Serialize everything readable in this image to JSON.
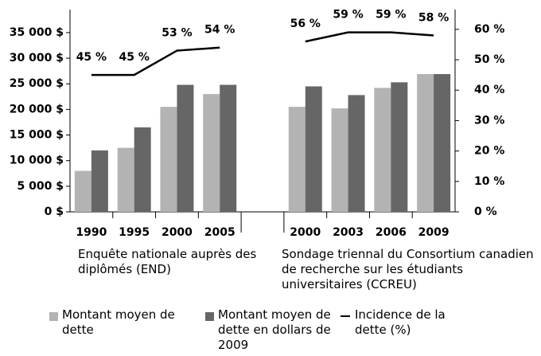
{
  "chart_data": {
    "type": "bar",
    "categories": [
      "1990",
      "1995",
      "2000",
      "2005",
      null,
      "2000",
      "2003",
      "2006",
      "2009"
    ],
    "group_labels": [
      "Enquête nationale auprès des diplômés (END)",
      "Sondage triennal du Consortium canadien de recherche sur les étudiants universitaires (CCREU)"
    ],
    "series": [
      {
        "name": "Montant moyen de dette",
        "color": "#b3b3b3",
        "values": [
          8000,
          12500,
          20500,
          23000,
          null,
          20500,
          20200,
          24200,
          26900
        ]
      },
      {
        "name": "Montant moyen de dette en dollars de 2009",
        "color": "#666666",
        "values": [
          12000,
          16500,
          24800,
          24800,
          null,
          24500,
          22800,
          25300,
          26900
        ]
      },
      {
        "name": "Incidence de la dette (%)",
        "type": "line",
        "axis": "y2",
        "color": "#000000",
        "values": [
          45,
          45,
          53,
          54,
          null,
          56,
          59,
          59,
          58
        ],
        "value_labels": [
          "45 %",
          "45 %",
          "53 %",
          "54 %",
          null,
          "56 %",
          "59 %",
          "59 %",
          "58 %"
        ]
      }
    ],
    "ylim": [
      0,
      39500
    ],
    "yticks": [
      {
        "value": 0,
        "label": "0 $"
      },
      {
        "value": 5000,
        "label": "5 000 $"
      },
      {
        "value": 10000,
        "label": "10 000 $"
      },
      {
        "value": 15000,
        "label": "15 000 $"
      },
      {
        "value": 20000,
        "label": "20 000 $"
      },
      {
        "value": 25000,
        "label": "25 000 $"
      },
      {
        "value": 30000,
        "label": "30 000 $"
      },
      {
        "value": 35000,
        "label": "35 000 $"
      }
    ],
    "y2lim": [
      0,
      66.5
    ],
    "y2ticks": [
      {
        "value": 0,
        "label": "0 %"
      },
      {
        "value": 10,
        "label": "10 %"
      },
      {
        "value": 20,
        "label": "20 %"
      },
      {
        "value": 30,
        "label": "30 %"
      },
      {
        "value": 40,
        "label": "40 %"
      },
      {
        "value": 50,
        "label": "50 %"
      },
      {
        "value": 60,
        "label": "60 %"
      }
    ],
    "grid": false
  }
}
